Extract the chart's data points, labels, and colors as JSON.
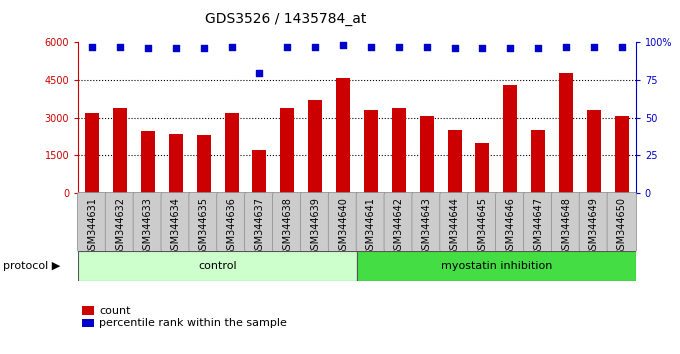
{
  "title": "GDS3526 / 1435784_at",
  "samples": [
    "GSM344631",
    "GSM344632",
    "GSM344633",
    "GSM344634",
    "GSM344635",
    "GSM344636",
    "GSM344637",
    "GSM344638",
    "GSM344639",
    "GSM344640",
    "GSM344641",
    "GSM344642",
    "GSM344643",
    "GSM344644",
    "GSM344645",
    "GSM344646",
    "GSM344647",
    "GSM344648",
    "GSM344649",
    "GSM344650"
  ],
  "counts": [
    3200,
    3400,
    2450,
    2350,
    2300,
    3200,
    1700,
    3400,
    3700,
    4600,
    3300,
    3400,
    3050,
    2500,
    2000,
    4300,
    2500,
    4800,
    3300,
    3050
  ],
  "percentile_ranks": [
    97,
    97,
    96,
    96,
    96,
    97,
    80,
    97,
    97,
    98,
    97,
    97,
    97,
    96,
    96,
    96,
    96,
    97,
    97,
    97
  ],
  "bar_color": "#cc0000",
  "dot_color": "#0000cc",
  "ylim_left": [
    0,
    6000
  ],
  "ylim_right": [
    0,
    100
  ],
  "yticks_left": [
    0,
    1500,
    3000,
    4500,
    6000
  ],
  "yticks_right": [
    0,
    25,
    50,
    75,
    100
  ],
  "grid_values": [
    1500,
    3000,
    4500
  ],
  "control_count": 10,
  "control_label": "control",
  "treatment_label": "myostatin inhibition",
  "protocol_label": "protocol",
  "legend_count_label": "count",
  "legend_pct_label": "percentile rank within the sample",
  "control_color": "#ccffcc",
  "treatment_color": "#44dd44",
  "bar_width": 0.5,
  "title_fontsize": 10,
  "tick_fontsize": 7,
  "label_fontsize": 8,
  "cell_color": "#cccccc",
  "cell_edge_color": "#888888"
}
